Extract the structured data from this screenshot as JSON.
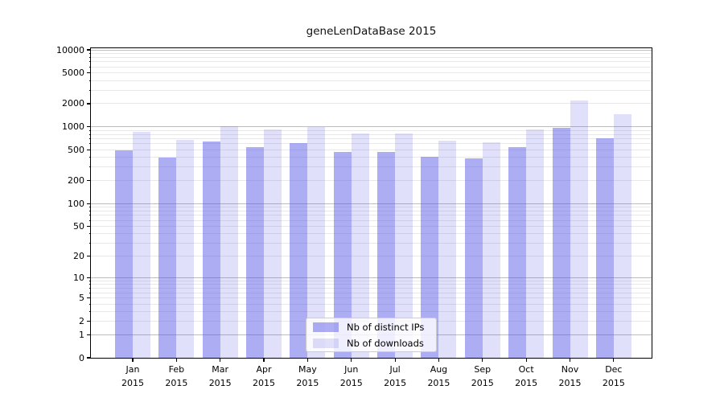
{
  "chart_data": {
    "type": "bar",
    "title": "geneLenDataBase 2015",
    "x_categories": [
      "Jan",
      "Feb",
      "Mar",
      "Apr",
      "May",
      "Jun",
      "Jul",
      "Aug",
      "Sep",
      "Oct",
      "Nov",
      "Dec"
    ],
    "x_year": "2015",
    "series": [
      {
        "name": "Nb of distinct IPs",
        "color": "rgba(83,83,229,0.48)",
        "values": [
          500,
          400,
          640,
          550,
          610,
          470,
          470,
          410,
          385,
          540,
          960,
          710
        ]
      },
      {
        "name": "Nb of downloads",
        "color": "rgba(83,83,229,0.18)",
        "values": [
          870,
          680,
          1020,
          920,
          990,
          820,
          810,
          660,
          630,
          920,
          2200,
          1450
        ]
      }
    ],
    "yscale": "log1p",
    "ylim": [
      0,
      10500
    ],
    "ytick_values": [
      0,
      1,
      2,
      5,
      10,
      20,
      50,
      100,
      200,
      500,
      1000,
      2000,
      5000,
      10000
    ],
    "ytick_labels": [
      "0",
      "1",
      "2",
      "5",
      "10",
      "20",
      "50",
      "100",
      "200",
      "500",
      "1000",
      "2000",
      "5000",
      "10000"
    ],
    "grid": {
      "major_ticks": [
        1,
        10,
        100,
        1000,
        10000
      ],
      "minor_decades": [
        1,
        10,
        100,
        1000
      ],
      "major_color": "#bdbdbd",
      "minor_color": "#e8e8e8"
    },
    "legend": {
      "position": "lower center",
      "labels": [
        "Nb of distinct IPs",
        "Nb of downloads"
      ]
    },
    "axis_color": "#000000",
    "background": "#ffffff"
  }
}
